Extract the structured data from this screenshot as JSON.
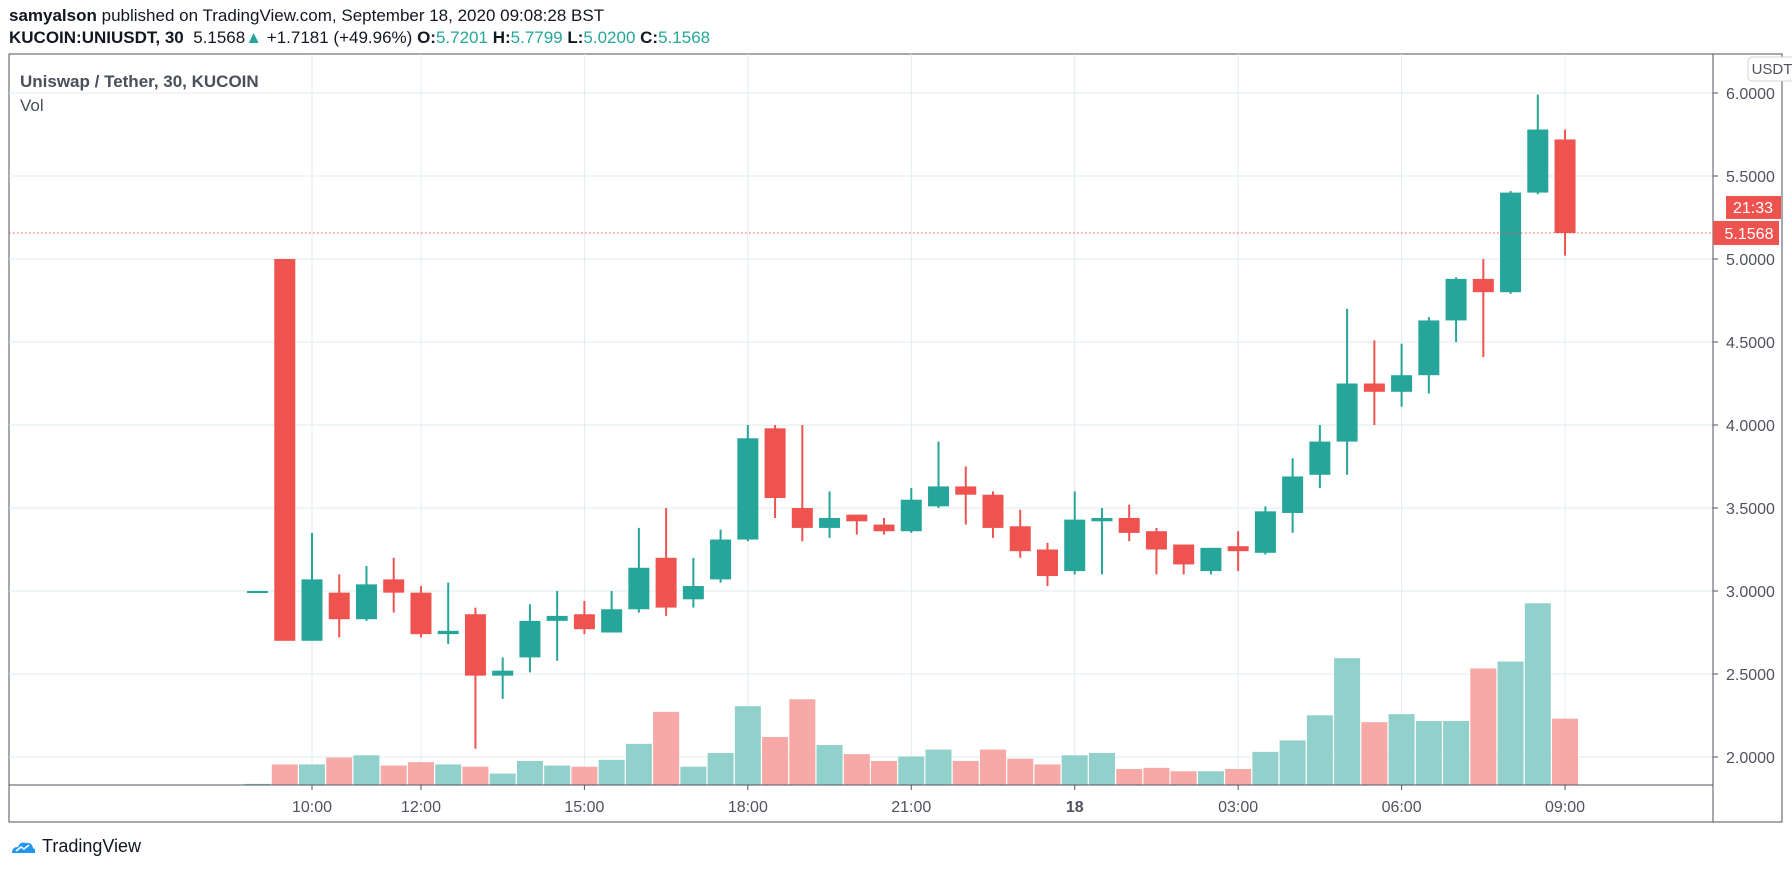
{
  "header": {
    "author": "samyalson",
    "published": "published on TradingView.com, September 18, 2020 09:08:28 BST",
    "symbol": "KUCOIN:UNIUSDT, 30",
    "last": "5.1568",
    "change": "+1.7181 (+49.96%)",
    "o_label": "O:",
    "o": "5.7201",
    "h_label": "H:",
    "h": "5.7799",
    "l_label": "L:",
    "l": "5.0200",
    "c_label": "C:",
    "c": "5.1568"
  },
  "legend": {
    "title": "Uniswap / Tether, 30, KUCOIN",
    "vol": "Vol"
  },
  "price_axis": {
    "currency": "USDT",
    "last_price_label": "5.1568",
    "countdown": "21:33"
  },
  "footer": {
    "brand": "TradingView"
  },
  "colors": {
    "up": "#26a69a",
    "down": "#ef5350",
    "up_vol": "#92d1cb",
    "down_vol": "#f7a9a7",
    "grid": "#e1ecf2"
  },
  "chart_data": {
    "type": "candlestick",
    "interval_minutes": 30,
    "ylim": [
      1.83,
      6.1
    ],
    "y_ticks": [
      "6.0000",
      "5.5000",
      "5.0000",
      "4.5000",
      "4.0000",
      "3.5000",
      "3.0000",
      "2.5000",
      "2.0000"
    ],
    "x_ticks": [
      {
        "label": "10:00",
        "time": "10:00"
      },
      {
        "label": "12:00",
        "time": "12:00"
      },
      {
        "label": "15:00",
        "time": "15:00"
      },
      {
        "label": "18:00",
        "time": "18:00"
      },
      {
        "label": "21:00",
        "time": "21:00"
      },
      {
        "label": "18",
        "time": "00:00",
        "bold": true
      },
      {
        "label": "03:00",
        "time": "03:00"
      },
      {
        "label": "06:00",
        "time": "06:00"
      },
      {
        "label": "09:00",
        "time": "09:00b"
      }
    ],
    "grid": true,
    "last_price": 5.1568,
    "columns": [
      "time",
      "open",
      "high",
      "low",
      "close",
      "volume_relative"
    ],
    "candles": [
      [
        "09:00",
        3.0,
        3.0,
        3.0,
        3.0,
        1
      ],
      [
        "09:30",
        5.0,
        5.0,
        2.7,
        2.7,
        18
      ],
      [
        "10:00",
        2.7,
        3.35,
        2.7,
        3.07,
        18
      ],
      [
        "10:30",
        2.99,
        3.1,
        2.72,
        2.83,
        24
      ],
      [
        "11:00",
        2.83,
        3.15,
        2.82,
        3.04,
        26
      ],
      [
        "11:30",
        3.07,
        3.2,
        2.87,
        2.99,
        17
      ],
      [
        "12:00",
        2.99,
        3.03,
        2.72,
        2.74,
        20
      ],
      [
        "12:30",
        2.74,
        3.05,
        2.68,
        2.76,
        18
      ],
      [
        "13:00",
        2.86,
        2.9,
        2.05,
        2.49,
        16
      ],
      [
        "13:30",
        2.49,
        2.6,
        2.35,
        2.52,
        10
      ],
      [
        "14:00",
        2.6,
        2.92,
        2.51,
        2.82,
        21
      ],
      [
        "14:30",
        2.82,
        3.0,
        2.58,
        2.85,
        17
      ],
      [
        "15:00",
        2.86,
        2.94,
        2.74,
        2.77,
        16
      ],
      [
        "15:30",
        2.75,
        3.0,
        2.75,
        2.89,
        22
      ],
      [
        "16:00",
        2.89,
        3.38,
        2.87,
        3.14,
        36
      ],
      [
        "16:30",
        3.2,
        3.5,
        2.85,
        2.9,
        64
      ],
      [
        "17:00",
        2.95,
        3.2,
        2.9,
        3.03,
        16
      ],
      [
        "17:30",
        3.07,
        3.37,
        3.05,
        3.31,
        28
      ],
      [
        "18:00",
        3.31,
        4.0,
        3.3,
        3.92,
        69
      ],
      [
        "18:30",
        3.98,
        4.0,
        3.44,
        3.56,
        42
      ],
      [
        "19:00",
        3.5,
        4.0,
        3.3,
        3.38,
        75
      ],
      [
        "19:30",
        3.38,
        3.6,
        3.32,
        3.44,
        35
      ],
      [
        "20:00",
        3.46,
        3.46,
        3.34,
        3.42,
        27
      ],
      [
        "20:30",
        3.4,
        3.44,
        3.34,
        3.36,
        21
      ],
      [
        "21:00",
        3.36,
        3.62,
        3.35,
        3.55,
        25
      ],
      [
        "21:30",
        3.51,
        3.9,
        3.5,
        3.63,
        31
      ],
      [
        "22:00",
        3.63,
        3.75,
        3.4,
        3.58,
        21
      ],
      [
        "22:30",
        3.58,
        3.6,
        3.32,
        3.38,
        31
      ],
      [
        "23:00",
        3.39,
        3.49,
        3.2,
        3.24,
        23
      ],
      [
        "23:30",
        3.25,
        3.29,
        3.03,
        3.09,
        18
      ],
      [
        "00:00",
        3.12,
        3.6,
        3.1,
        3.43,
        26
      ],
      [
        "00:30",
        3.42,
        3.5,
        3.1,
        3.44,
        28
      ],
      [
        "01:00",
        3.44,
        3.52,
        3.3,
        3.35,
        14
      ],
      [
        "01:30",
        3.36,
        3.38,
        3.1,
        3.25,
        15
      ],
      [
        "02:00",
        3.28,
        3.28,
        3.1,
        3.16,
        12
      ],
      [
        "02:30",
        3.12,
        3.26,
        3.1,
        3.26,
        12
      ],
      [
        "03:00",
        3.27,
        3.36,
        3.12,
        3.24,
        14
      ],
      [
        "03:30",
        3.23,
        3.51,
        3.22,
        3.48,
        29
      ],
      [
        "04:00",
        3.47,
        3.8,
        3.35,
        3.69,
        39
      ],
      [
        "04:30",
        3.7,
        4.0,
        3.62,
        3.9,
        61
      ],
      [
        "05:00",
        3.9,
        4.7,
        3.7,
        4.25,
        111
      ],
      [
        "05:30",
        4.25,
        4.51,
        4.0,
        4.2,
        55
      ],
      [
        "06:00",
        4.2,
        4.49,
        4.11,
        4.3,
        62
      ],
      [
        "06:30",
        4.3,
        4.65,
        4.19,
        4.63,
        56
      ],
      [
        "07:00",
        4.63,
        4.89,
        4.5,
        4.88,
        56
      ],
      [
        "07:30",
        4.88,
        5.0,
        4.41,
        4.8,
        102
      ],
      [
        "08:00",
        4.8,
        5.41,
        4.79,
        5.4,
        108
      ],
      [
        "08:30",
        5.4,
        5.99,
        5.39,
        5.78,
        159
      ],
      [
        "09:00b",
        5.7201,
        5.7799,
        5.02,
        5.1568,
        58
      ]
    ]
  }
}
